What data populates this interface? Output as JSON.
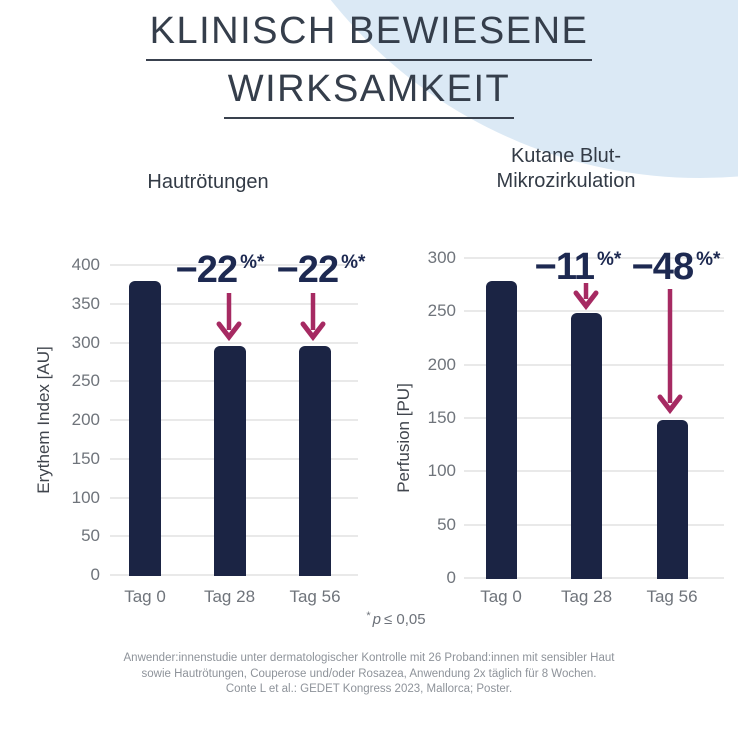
{
  "header": {
    "title_line1": "KLINISCH BEWIESENE",
    "title_line2": "WIRKSAMKEIT"
  },
  "significance": {
    "marker": "*",
    "p": "p",
    "rest": "≤ 0,05"
  },
  "footer": {
    "lines": [
      "Anwender:innenstudie unter dermatologischer Kontrolle mit 26 Proband:innen mit sensibler Haut",
      "sowie Hautrötungen, Couperose und/oder Rosazea, Anwendung 2x täglich für 8 Wochen.",
      "Conte L et al.: GEDET Kongress 2023, Mallorca; Poster."
    ]
  },
  "colors": {
    "bar": "#1b2444",
    "arrow": "#a62a62",
    "annotation_text": "#1d2951",
    "background_circle": "#dbe9f5",
    "gridline": "#e9e9e9",
    "tick_text": "#6f747b"
  },
  "chart_data": [
    {
      "type": "bar",
      "title_lines": [
        "Hautrötungen"
      ],
      "title": "Hautrötungen",
      "ylabel": "Erythem Index [AU]",
      "xlabel": "",
      "categories": [
        "Tag 0",
        "Tag 28",
        "Tag 56"
      ],
      "values": [
        380,
        296,
        296
      ],
      "ylim": [
        0,
        400
      ],
      "ytick_step": 50,
      "ytick_labels": [
        "0",
        "50",
        "100",
        "150",
        "200",
        "250",
        "300",
        "350",
        "400"
      ],
      "grid": true,
      "legend": "none",
      "annotations": [
        {
          "category": "Tag 28",
          "label": "−22",
          "sup": "%*"
        },
        {
          "category": "Tag 56",
          "label": "−22",
          "sup": "%*"
        }
      ]
    },
    {
      "type": "bar",
      "title_lines": [
        "Kutane Blut-",
        "Mikrozirkulation"
      ],
      "title": "Kutane Blut-Mikrozirkulation",
      "ylabel": "Perfusion [PU]",
      "xlabel": "",
      "categories": [
        "Tag 0",
        "Tag 28",
        "Tag 56"
      ],
      "values": [
        278,
        248,
        148
      ],
      "ylim": [
        0,
        300
      ],
      "ytick_step": 50,
      "ytick_labels": [
        "0",
        "50",
        "100",
        "150",
        "200",
        "250",
        "300"
      ],
      "grid": true,
      "legend": "none",
      "annotations": [
        {
          "category": "Tag 28",
          "label": "−11",
          "sup": "%*"
        },
        {
          "category": "Tag 56",
          "label": "−48",
          "sup": "%*"
        }
      ]
    }
  ]
}
